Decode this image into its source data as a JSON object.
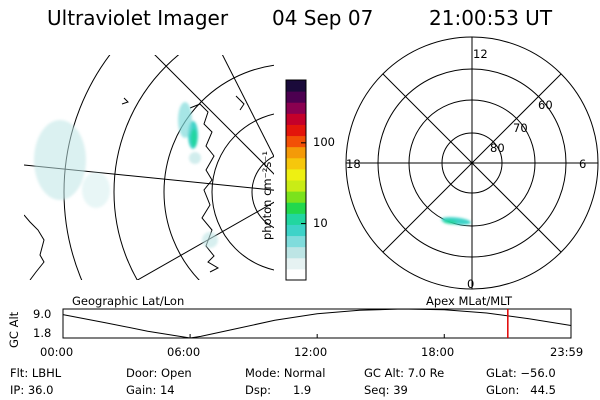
{
  "header": {
    "instrument": "Ultraviolet Imager",
    "date": "04 Sep 07",
    "time": "21:00:53 UT"
  },
  "colorbar": {
    "label": "photon cm⁻²s⁻¹",
    "ticks": [
      "100",
      "10"
    ],
    "tick_values": [
      100,
      10
    ],
    "range": [
      2,
      600
    ],
    "scale": "log",
    "colors": [
      "#ffffff",
      "#e6f2f2",
      "#bde5e5",
      "#80dcdc",
      "#3ed3c8",
      "#22d6a0",
      "#22d84d",
      "#7be21c",
      "#c9ec16",
      "#eef012",
      "#f6c70c",
      "#f49a08",
      "#f25006",
      "#e3150b",
      "#c4002a",
      "#8a0050",
      "#4c0050",
      "#1a0a3a"
    ]
  },
  "geo_panel": {
    "label": "Geographic Lat/Lon"
  },
  "polar_panel": {
    "label": "Apex  MLat/MLT",
    "mlt_labels": [
      "12",
      "18",
      "6",
      "0"
    ],
    "mlat_labels": [
      "60",
      "70",
      "80"
    ]
  },
  "timeline": {
    "ylabel": "GC Alt",
    "yticks": [
      "9.0",
      "1.8"
    ],
    "xticks": [
      "00:00",
      "06:00",
      "12:00",
      "18:00",
      "23:59"
    ],
    "current_time": "21:00"
  },
  "status": {
    "flt": "Flt: LBHL",
    "ip": "IP: 36.0",
    "door": "Door: Open",
    "gain": "Gain: 14",
    "mode": "Mode: Normal",
    "dsp": "Dsp:      1.9",
    "gcalt": "GC Alt: 7.0 Re",
    "seq": "Seq: 39",
    "glat": "GLat: −56.0",
    "glon": "GLon:   44.5"
  },
  "chart_data": {
    "type": "line",
    "title": "",
    "xlabel": "",
    "ylabel": "GC Alt",
    "x": [
      "00:00",
      "02:00",
      "04:00",
      "06:00",
      "06:30",
      "08:00",
      "10:00",
      "12:00",
      "14:00",
      "16:00",
      "18:00",
      "20:00",
      "22:00",
      "23:59"
    ],
    "series": [
      {
        "values": [
          7.6,
          5.6,
          3.5,
          1.8,
          2.2,
          3.9,
          6.2,
          7.8,
          8.7,
          9.0,
          8.8,
          8.0,
          6.6,
          4.9
        ]
      }
    ],
    "xlim": [
      "00:00",
      "23:59"
    ],
    "ylim": [
      1.8,
      9.0
    ],
    "marker_time": "21:00"
  }
}
